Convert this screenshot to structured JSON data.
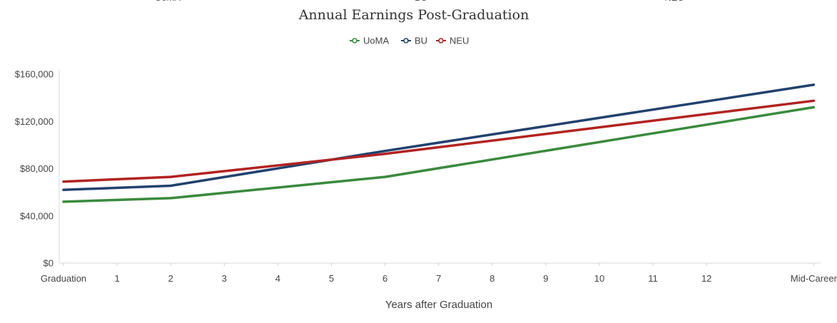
{
  "top_cut_labels": [
    "UoMA",
    "BU",
    "NEU"
  ],
  "chart_data": {
    "type": "line",
    "title": "Annual Earnings Post-Graduation",
    "xlabel": "Years after Graduation",
    "ylabel": "",
    "categories": [
      "Graduation",
      "1",
      "2",
      "3",
      "4",
      "5",
      "6",
      "7",
      "8",
      "9",
      "10",
      "11",
      "12",
      "Mid-Career"
    ],
    "x_positions": [
      0,
      1,
      2,
      3,
      4,
      5,
      6,
      7,
      8,
      9,
      10,
      11,
      12,
      14
    ],
    "ylim": [
      0,
      160000
    ],
    "yticks": [
      0,
      40000,
      80000,
      120000,
      160000
    ],
    "ytick_labels": [
      "$0",
      "$40,000",
      "$80,000",
      "$120,000",
      "$160,000"
    ],
    "legend_position": "top-center",
    "grid": false,
    "series": [
      {
        "name": "UoMA",
        "color": "#3a8a3e",
        "x": [
          0,
          2,
          6,
          14
        ],
        "values": [
          52000,
          55000,
          73000,
          132000
        ]
      },
      {
        "name": "BU",
        "color": "#22426e",
        "x": [
          0,
          2,
          6,
          14
        ],
        "values": [
          62000,
          65500,
          95000,
          151000
        ]
      },
      {
        "name": "NEU",
        "color": "#b22222",
        "x": [
          0,
          2,
          6,
          14
        ],
        "values": [
          69000,
          73000,
          92500,
          137500
        ]
      }
    ]
  }
}
